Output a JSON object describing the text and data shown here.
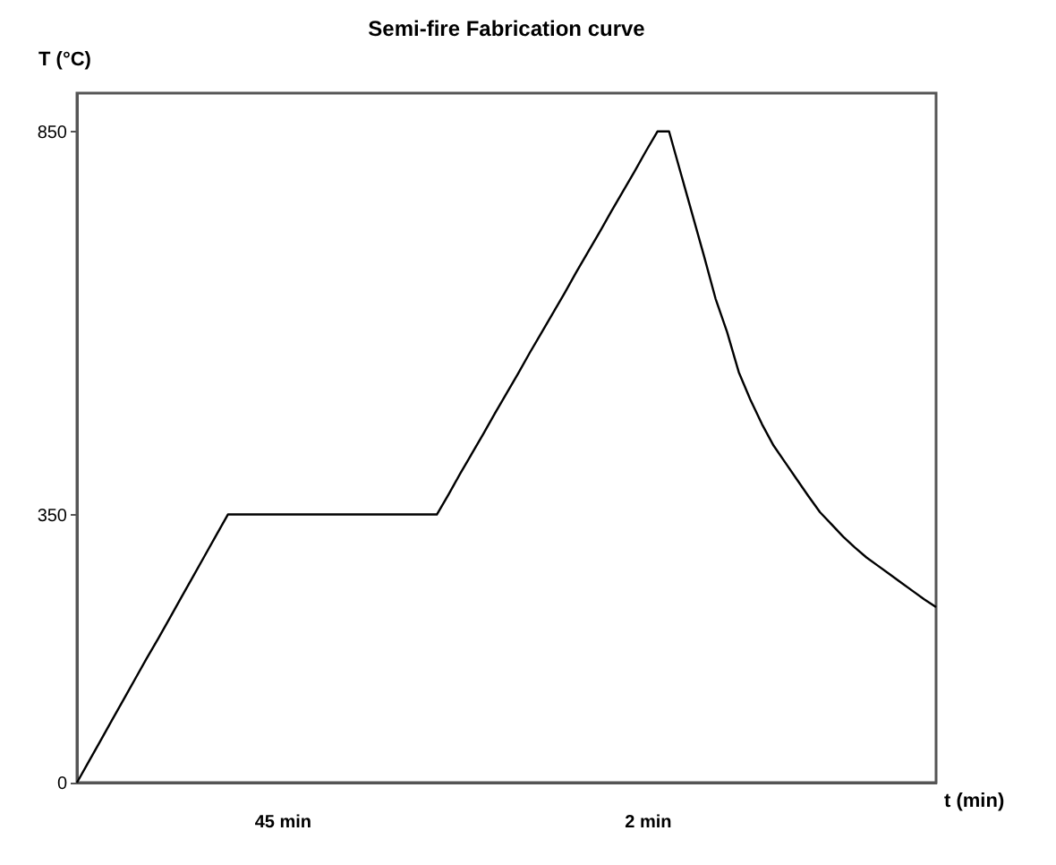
{
  "chart_data": {
    "type": "line",
    "title": "Semi-fire Fabrication curve",
    "xlabel": "t (min)",
    "ylabel": "T (°C)",
    "categories": [
      null,
      null,
      null,
      null,
      null,
      null,
      null,
      null,
      null,
      null,
      null,
      null,
      null,
      null,
      null,
      null,
      null,
      null,
      null,
      null,
      null,
      null,
      null,
      null,
      null,
      null,
      null,
      null,
      null,
      null,
      null,
      null,
      null,
      null,
      null,
      null,
      null,
      null,
      null,
      null,
      null,
      null,
      null,
      null,
      null,
      null,
      null,
      null,
      null,
      null,
      null,
      null,
      null,
      null,
      null,
      null,
      null,
      null,
      null,
      null,
      null,
      null,
      null,
      null,
      null,
      null,
      null,
      null,
      null,
      null,
      null,
      null,
      null,
      null,
      null
    ],
    "series": [
      {
        "color": "#000000",
        "values": [
          0,
          27,
          54,
          81,
          108,
          135,
          162,
          188,
          215,
          242,
          269,
          296,
          323,
          350,
          350,
          350,
          350,
          350,
          350,
          350,
          350,
          350,
          350,
          350,
          350,
          350,
          350,
          350,
          350,
          350,
          350,
          350,
          376,
          403,
          429,
          455,
          482,
          508,
          534,
          561,
          587,
          613,
          639,
          666,
          692,
          718,
          745,
          771,
          797,
          824,
          850,
          850,
          796,
          742,
          688,
          632,
          588,
          536,
          500,
          468,
          440,
          418,
          396,
          374,
          353,
          337,
          321,
          307,
          294,
          283,
          272,
          261,
          250,
          239,
          229
        ]
      }
    ],
    "ylim": [
      0,
      900
    ],
    "yticks": [
      0,
      350,
      850
    ],
    "tick_labels": "y",
    "grid": false,
    "annotations": [
      "45 min",
      "2 min"
    ]
  }
}
